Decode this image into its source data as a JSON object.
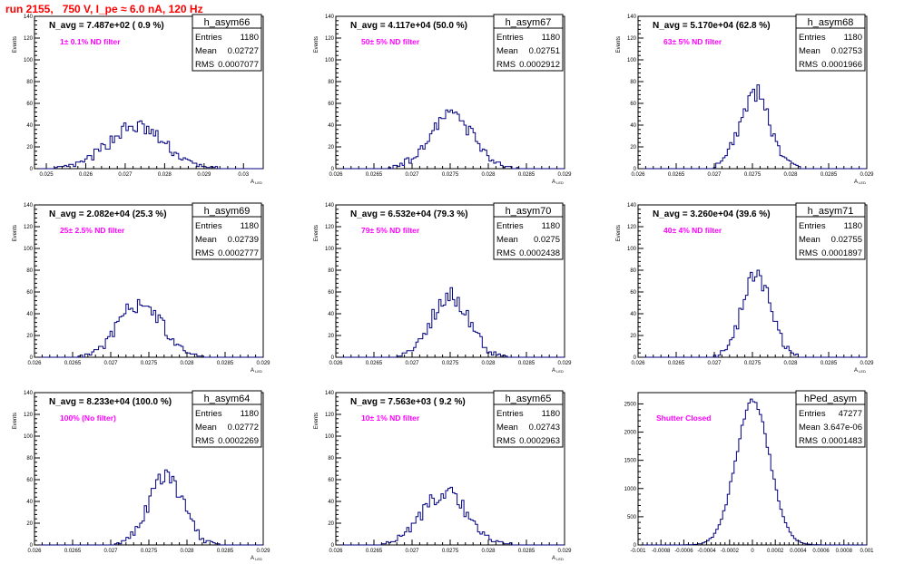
{
  "header": {
    "run_title": "run 2155,   750 V, I_pe ≈ 6.0 nA, 120 Hz"
  },
  "colors": {
    "title": "#ff0000",
    "annotation": "#ff00ff",
    "histogram_line": "#000080",
    "axes": "#000000"
  },
  "chart_data": [
    {
      "type": "histogram",
      "name": "h_asym66",
      "stats": {
        "Entries": "1180",
        "Mean": "0.02727",
        "RMS": "0.0007077"
      },
      "navg_text": "N_avg = 7.487e+02 ( 0.9 %)",
      "annotation": "1± 0.1% ND filter",
      "ylabel": "Events",
      "xlabel": "A",
      "xlabel_sub": "LED",
      "xlim": [
        0.0247,
        0.0305
      ],
      "ylim": [
        0,
        140
      ],
      "xticks": [
        "0.025",
        "0.026",
        "0.027",
        "0.028",
        "0.029",
        "0.03"
      ],
      "xtick_values": [
        0.025,
        0.026,
        0.027,
        0.028,
        0.029,
        0.03
      ],
      "yticks": [
        "0",
        "20",
        "40",
        "60",
        "80",
        "100",
        "120",
        "140"
      ],
      "ytick_values": [
        0,
        20,
        40,
        60,
        80,
        100,
        120,
        140
      ]
    },
    {
      "type": "histogram",
      "name": "h_asym67",
      "stats": {
        "Entries": "1180",
        "Mean": "0.02751",
        "RMS": "0.0002912"
      },
      "navg_text": "N_avg = 4.117e+04 (50.0 %)",
      "annotation": "50± 5% ND filter",
      "ylabel": "Events",
      "xlabel": "A",
      "xlabel_sub": "LED",
      "xlim": [
        0.026,
        0.029
      ],
      "ylim": [
        0,
        140
      ],
      "xticks": [
        "0.026",
        "0.0265",
        "0.027",
        "0.0275",
        "0.028",
        "0.0285",
        "0.029"
      ],
      "xtick_values": [
        0.026,
        0.0265,
        0.027,
        0.0275,
        0.028,
        0.0285,
        0.029
      ],
      "yticks": [
        "0",
        "20",
        "40",
        "60",
        "80",
        "100",
        "120",
        "140"
      ],
      "ytick_values": [
        0,
        20,
        40,
        60,
        80,
        100,
        120,
        140
      ]
    },
    {
      "type": "histogram",
      "name": "h_asym68",
      "stats": {
        "Entries": "1180",
        "Mean": "0.02753",
        "RMS": "0.0001966"
      },
      "navg_text": "N_avg = 5.170e+04 (62.8 %)",
      "annotation": "63± 5% ND filter",
      "ylabel": "Events",
      "xlabel": "A",
      "xlabel_sub": "LED",
      "xlim": [
        0.026,
        0.029
      ],
      "ylim": [
        0,
        140
      ],
      "xticks": [
        "0.026",
        "0.0265",
        "0.027",
        "0.0275",
        "0.028",
        "0.0285",
        "0.029"
      ],
      "xtick_values": [
        0.026,
        0.0265,
        0.027,
        0.0275,
        0.028,
        0.0285,
        0.029
      ],
      "yticks": [
        "0",
        "20",
        "40",
        "60",
        "80",
        "100",
        "120",
        "140"
      ],
      "ytick_values": [
        0,
        20,
        40,
        60,
        80,
        100,
        120,
        140
      ]
    },
    {
      "type": "histogram",
      "name": "h_asym69",
      "stats": {
        "Entries": "1180",
        "Mean": "0.02739",
        "RMS": "0.0002777"
      },
      "navg_text": "N_avg = 2.082e+04 (25.3 %)",
      "annotation": "25± 2.5% ND filter",
      "ylabel": "Events",
      "xlabel": "A",
      "xlabel_sub": "LED",
      "xlim": [
        0.026,
        0.029
      ],
      "ylim": [
        0,
        140
      ],
      "xticks": [
        "0.026",
        "0.0265",
        "0.027",
        "0.0275",
        "0.028",
        "0.0285",
        "0.029"
      ],
      "xtick_values": [
        0.026,
        0.0265,
        0.027,
        0.0275,
        0.028,
        0.0285,
        0.029
      ],
      "yticks": [
        "0",
        "20",
        "40",
        "60",
        "80",
        "100",
        "120",
        "140"
      ],
      "ytick_values": [
        0,
        20,
        40,
        60,
        80,
        100,
        120,
        140
      ]
    },
    {
      "type": "histogram",
      "name": "h_asym70",
      "stats": {
        "Entries": "1180",
        "Mean": "0.0275",
        "RMS": "0.0002438"
      },
      "navg_text": "N_avg = 6.532e+04 (79.3 %)",
      "annotation": "79± 5% ND filter",
      "ylabel": "Events",
      "xlabel": "A",
      "xlabel_sub": "LED",
      "xlim": [
        0.026,
        0.029
      ],
      "ylim": [
        0,
        140
      ],
      "xticks": [
        "0.026",
        "0.0265",
        "0.027",
        "0.0275",
        "0.028",
        "0.0285",
        "0.029"
      ],
      "xtick_values": [
        0.026,
        0.0265,
        0.027,
        0.0275,
        0.028,
        0.0285,
        0.029
      ],
      "yticks": [
        "0",
        "20",
        "40",
        "60",
        "80",
        "100",
        "120",
        "140"
      ],
      "ytick_values": [
        0,
        20,
        40,
        60,
        80,
        100,
        120,
        140
      ]
    },
    {
      "type": "histogram",
      "name": "h_asym71",
      "stats": {
        "Entries": "1180",
        "Mean": "0.02755",
        "RMS": "0.0001897"
      },
      "navg_text": "N_avg = 3.260e+04 (39.6 %)",
      "annotation": "40± 4% ND filter",
      "ylabel": "Events",
      "xlabel": "A",
      "xlabel_sub": "LED",
      "xlim": [
        0.026,
        0.029
      ],
      "ylim": [
        0,
        140
      ],
      "xticks": [
        "0.026",
        "0.0265",
        "0.027",
        "0.0275",
        "0.028",
        "0.0285",
        "0.029"
      ],
      "xtick_values": [
        0.026,
        0.0265,
        0.027,
        0.0275,
        0.028,
        0.0285,
        0.029
      ],
      "yticks": [
        "0",
        "20",
        "40",
        "60",
        "80",
        "100",
        "120",
        "140"
      ],
      "ytick_values": [
        0,
        20,
        40,
        60,
        80,
        100,
        120,
        140
      ]
    },
    {
      "type": "histogram",
      "name": "h_asym64",
      "stats": {
        "Entries": "1180",
        "Mean": "0.02772",
        "RMS": "0.0002269"
      },
      "navg_text": "N_avg = 8.233e+04 (100.0 %)",
      "annotation": "100% (No filter)",
      "ylabel": "Events",
      "xlabel": "A",
      "xlabel_sub": "LED",
      "xlim": [
        0.026,
        0.029
      ],
      "ylim": [
        0,
        140
      ],
      "xticks": [
        "0.026",
        "0.0265",
        "0.027",
        "0.0275",
        "0.028",
        "0.0285",
        "0.029"
      ],
      "xtick_values": [
        0.026,
        0.0265,
        0.027,
        0.0275,
        0.028,
        0.0285,
        0.029
      ],
      "yticks": [
        "0",
        "20",
        "40",
        "60",
        "80",
        "100",
        "120",
        "140"
      ],
      "ytick_values": [
        0,
        20,
        40,
        60,
        80,
        100,
        120,
        140
      ]
    },
    {
      "type": "histogram",
      "name": "h_asym65",
      "stats": {
        "Entries": "1180",
        "Mean": "0.02743",
        "RMS": "0.0002963"
      },
      "navg_text": "N_avg = 7.563e+03 ( 9.2 %)",
      "annotation": "10± 1% ND filter",
      "ylabel": "Events",
      "xlabel": "A",
      "xlabel_sub": "LED",
      "xlim": [
        0.026,
        0.029
      ],
      "ylim": [
        0,
        140
      ],
      "xticks": [
        "0.026",
        "0.0265",
        "0.027",
        "0.0275",
        "0.028",
        "0.0285",
        "0.029"
      ],
      "xtick_values": [
        0.026,
        0.0265,
        0.027,
        0.0275,
        0.028,
        0.0285,
        0.029
      ],
      "yticks": [
        "0",
        "20",
        "40",
        "60",
        "80",
        "100",
        "120",
        "140"
      ],
      "ytick_values": [
        0,
        20,
        40,
        60,
        80,
        100,
        120,
        140
      ]
    },
    {
      "type": "histogram",
      "name": "hPed_asym",
      "stats": {
        "Entries": "47277",
        "Mean": "3.647e-06",
        "RMS": "0.0001483"
      },
      "navg_text": "",
      "annotation": "Shutter Closed",
      "ylabel": "",
      "xlabel": "",
      "xlabel_sub": "",
      "xlim": [
        -0.001,
        0.001
      ],
      "ylim": [
        0,
        2700
      ],
      "xticks": [
        "-0.001",
        "-0.0008",
        "-0.0006",
        "-0.0004",
        "-0.0002",
        "0",
        "0.0002",
        "0.0004",
        "0.0006",
        "0.0008",
        "0.001"
      ],
      "xtick_values": [
        -0.001,
        -0.0008,
        -0.0006,
        -0.0004,
        -0.0002,
        0,
        0.0002,
        0.0004,
        0.0006,
        0.0008,
        0.001
      ],
      "yticks": [
        "0",
        "500",
        "1000",
        "1500",
        "2000",
        "2500"
      ],
      "ytick_values": [
        0,
        500,
        1000,
        1500,
        2000,
        2500
      ]
    }
  ]
}
